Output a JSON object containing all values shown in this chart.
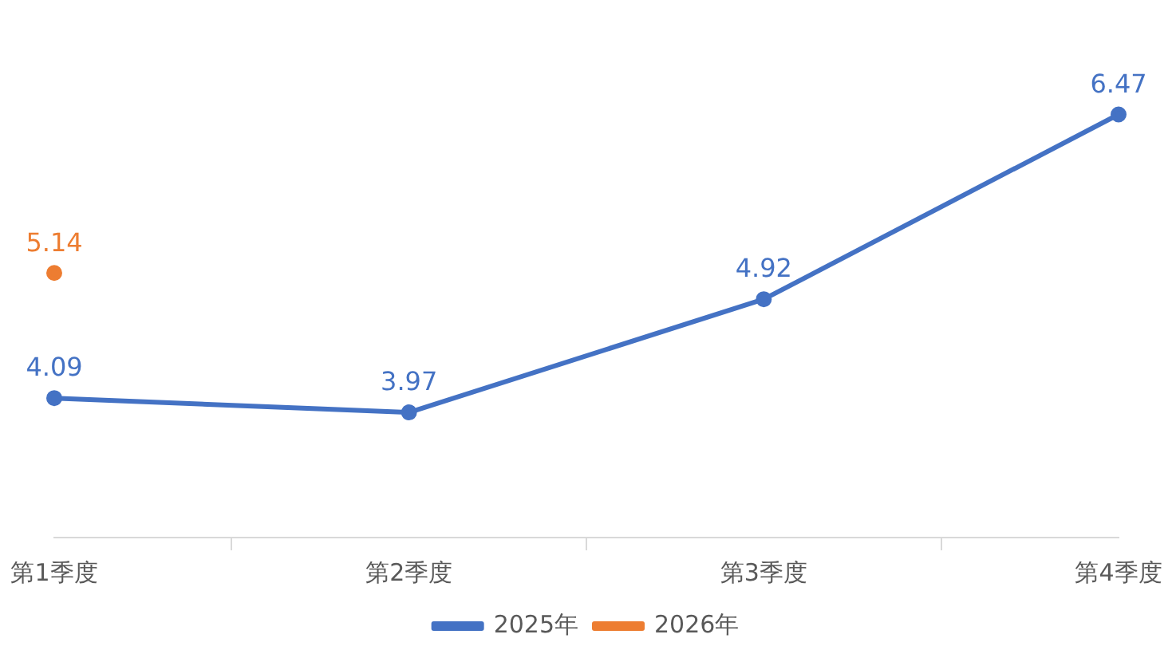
{
  "chart_data": {
    "type": "line",
    "categories": [
      "第1季度",
      "第2季度",
      "第3季度",
      "第4季度"
    ],
    "series": [
      {
        "name": "2025年",
        "color": "#4472c4",
        "values": [
          4.09,
          3.97,
          4.92,
          6.47
        ]
      },
      {
        "name": "2026年",
        "color": "#ed7d31",
        "values": [
          5.14,
          null,
          null,
          null
        ]
      }
    ],
    "data_labels": true,
    "legend": "bottom",
    "marker": "circle",
    "grid": false,
    "tick_labels": "x",
    "line_style": "solid"
  }
}
